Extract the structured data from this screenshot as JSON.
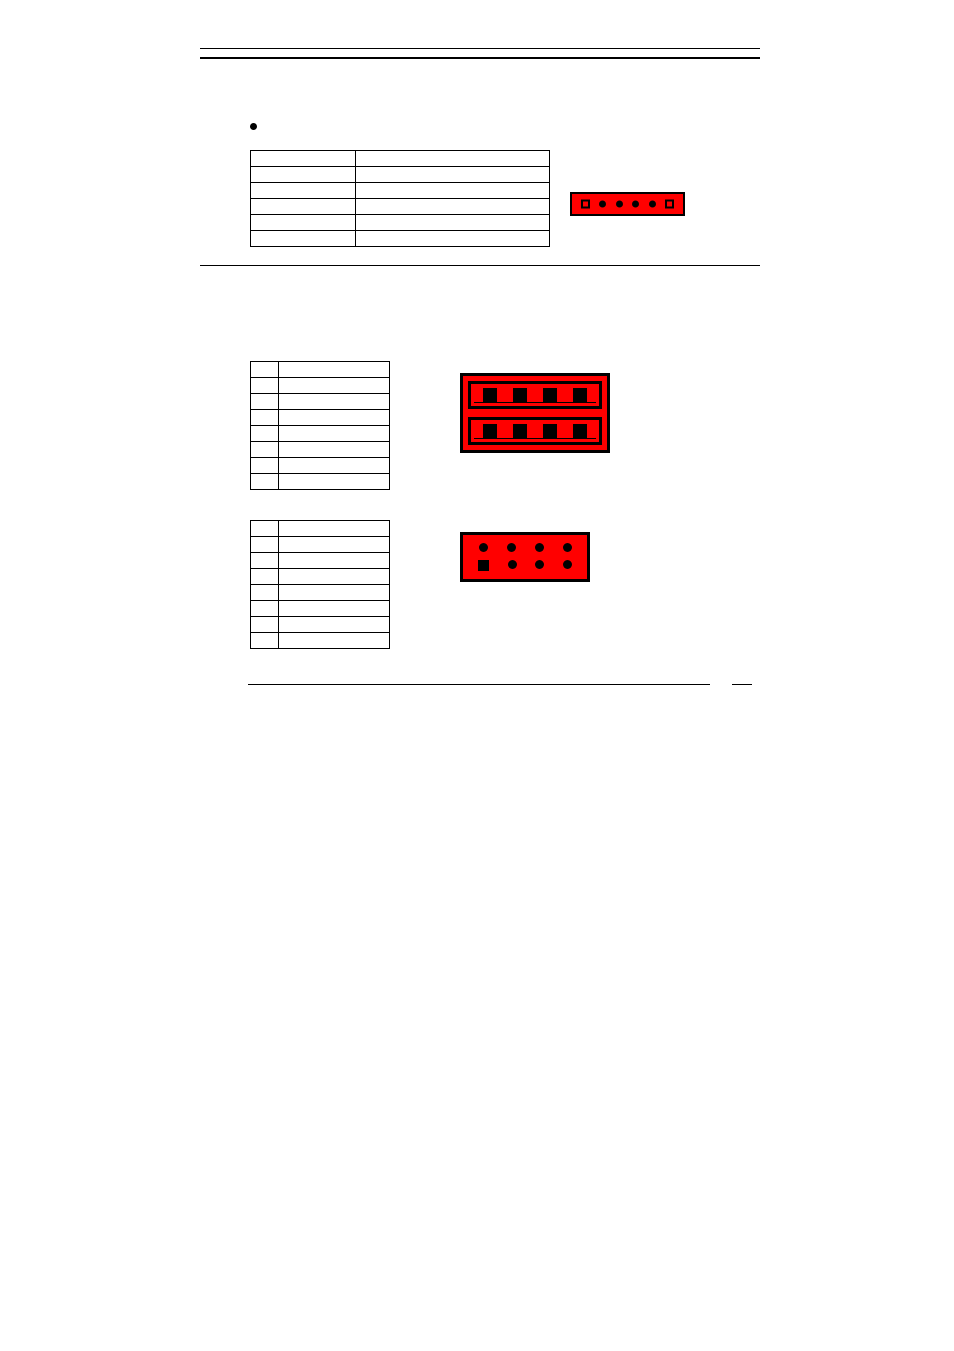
{
  "section_a": {
    "bullet_text": "",
    "table": {
      "rows": [
        [
          "",
          ""
        ],
        [
          "",
          ""
        ],
        [
          "",
          ""
        ],
        [
          "",
          ""
        ],
        [
          "",
          ""
        ],
        [
          "",
          ""
        ]
      ]
    },
    "connector": {
      "type": "1x6-header",
      "background_color": "#ff0000",
      "border_color": "#000000",
      "end_style": "square",
      "mid_style": "circle",
      "pin_count": 6
    }
  },
  "section_b": {
    "table": {
      "rows": [
        [
          "",
          ""
        ],
        [
          "",
          ""
        ],
        [
          "",
          ""
        ],
        [
          "",
          ""
        ],
        [
          "",
          ""
        ],
        [
          "",
          ""
        ],
        [
          "",
          ""
        ],
        [
          "",
          ""
        ]
      ]
    },
    "connector": {
      "type": "usb-dual-stacked",
      "background_color": "#ff0000",
      "border_color": "#000000",
      "pins_per_port": 4,
      "ports": 2
    }
  },
  "section_c": {
    "table": {
      "rows": [
        [
          "",
          ""
        ],
        [
          "",
          ""
        ],
        [
          "",
          ""
        ],
        [
          "",
          ""
        ],
        [
          "",
          ""
        ],
        [
          "",
          ""
        ],
        [
          "",
          ""
        ],
        [
          "",
          ""
        ]
      ]
    },
    "connector": {
      "type": "2x4-header",
      "background_color": "#ff0000",
      "border_color": "#000000",
      "top_row": [
        "circle",
        "circle",
        "circle",
        "circle"
      ],
      "bottom_row": [
        "square",
        "circle",
        "circle",
        "circle"
      ]
    }
  },
  "colors": {
    "accent": "#ff0000",
    "border": "#000000",
    "bg": "#ffffff"
  }
}
